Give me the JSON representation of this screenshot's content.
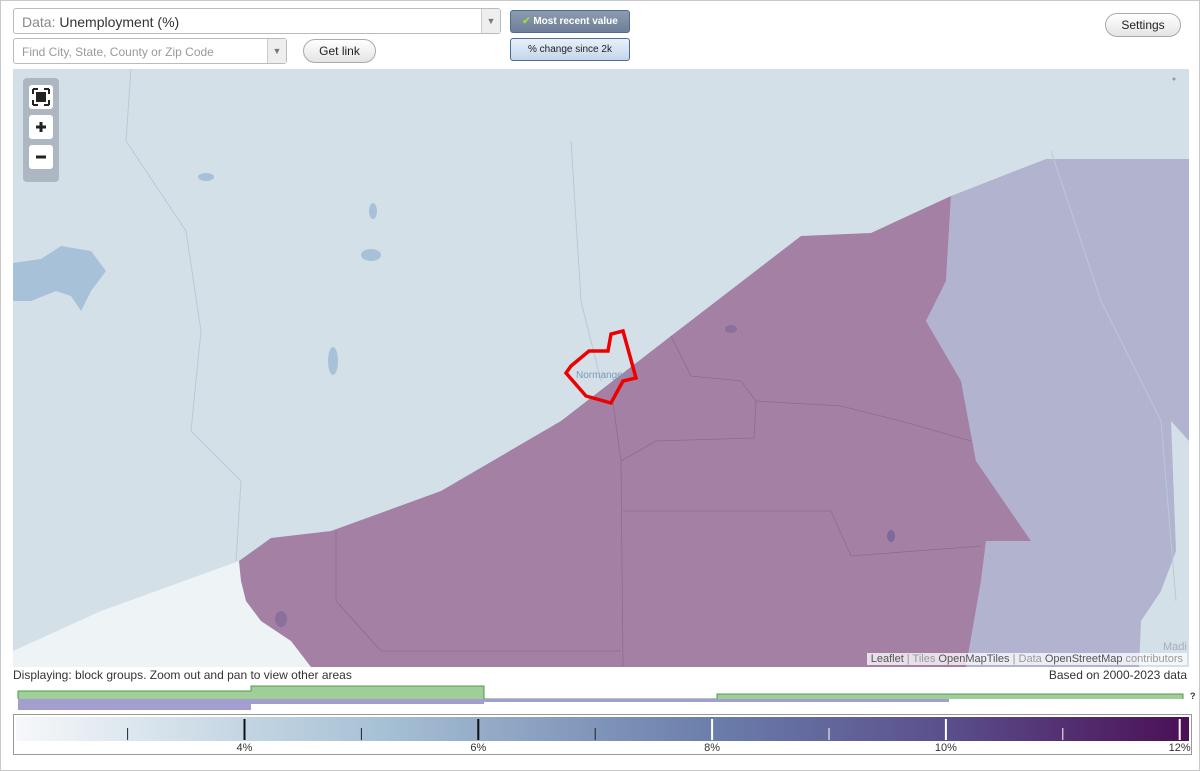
{
  "controls": {
    "data_label": "Data:",
    "data_value": "Unemployment (%)",
    "search_placeholder": "Find City, State, County or Zip Code",
    "get_link": "Get link",
    "most_recent": "Most recent value",
    "pct_change": "% change since 2k",
    "settings": "Settings"
  },
  "map": {
    "place_label": "Normangee",
    "corner_label": "Madi",
    "attribution": [
      "Leaflet",
      " | ",
      "Tiles ",
      "OpenMapTiles",
      " | ",
      "Data ",
      "OpenStreetMap",
      " contributors"
    ]
  },
  "footer": {
    "displaying": "Displaying: block groups. Zoom out and pan to view other areas",
    "based_on": "Based on 2000-2023 data",
    "question": "?"
  },
  "legend": {
    "labels": [
      "4%",
      "6%",
      "8%",
      "10%",
      "12%"
    ]
  }
}
